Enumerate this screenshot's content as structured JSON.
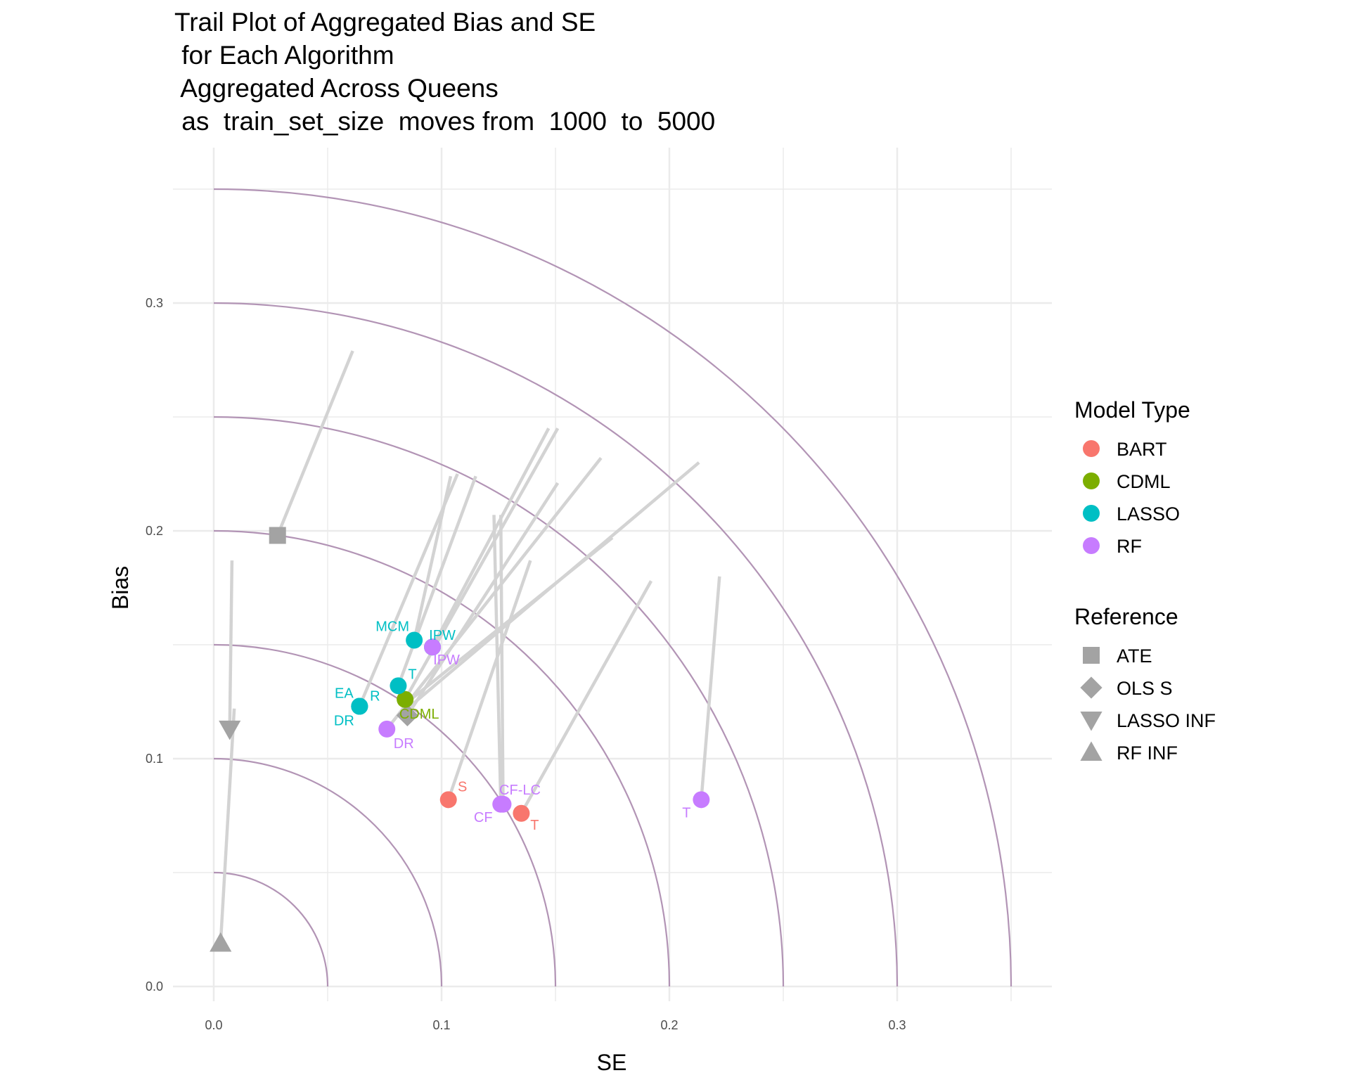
{
  "chart_data": {
    "type": "scatter",
    "title_lines": [
      "Trail Plot of Aggregated Bias and SE",
      " for Each Algorithm",
      " Aggregated Across Queens",
      " as  train_set_size  moves from  1000  to  5000"
    ],
    "xlabel": "SE",
    "ylabel": "Bias",
    "xlim": [
      -0.018,
      0.367
    ],
    "ylim": [
      -0.017,
      0.366
    ],
    "x_ticks": [
      {
        "value": 0.0,
        "label": "0.0"
      },
      {
        "value": 0.1,
        "label": "0.1"
      },
      {
        "value": 0.2,
        "label": "0.2"
      },
      {
        "value": 0.3,
        "label": "0.3"
      }
    ],
    "y_ticks": [
      {
        "value": 0.0,
        "label": "0.0"
      },
      {
        "value": 0.1,
        "label": "0.1"
      },
      {
        "value": 0.2,
        "label": "0.2"
      },
      {
        "value": 0.3,
        "label": "0.3"
      }
    ],
    "minor_grid": [
      0.05,
      0.15,
      0.25,
      0.35
    ],
    "grid": true,
    "reference_arcs": [
      0.05,
      0.1,
      0.15,
      0.2,
      0.25,
      0.3,
      0.35
    ],
    "arc_color": "#b294b5",
    "grid_color": "#ebebeb",
    "trail_color": "#d3d3d3",
    "reference_color": "#a3a3a3",
    "model_types": [
      {
        "name": "BART",
        "color": "#f8766d"
      },
      {
        "name": "CDML",
        "color": "#7cae00"
      },
      {
        "name": "LASSO",
        "color": "#00bfc4"
      },
      {
        "name": "RF",
        "color": "#c77cff"
      }
    ],
    "references": [
      {
        "name": "ATE",
        "shape": "square"
      },
      {
        "name": "OLS S",
        "shape": "diamond"
      },
      {
        "name": "LASSO INF",
        "shape": "triangle-down"
      },
      {
        "name": "RF INF",
        "shape": "triangle-up"
      }
    ],
    "legend_titles": {
      "model_type": "Model Type",
      "reference": "Reference"
    },
    "legend_position": "right",
    "trails": [
      {
        "from": [
          0.061,
          0.279
        ],
        "to": [
          0.028,
          0.198
        ]
      },
      {
        "from": [
          0.008,
          0.187
        ],
        "to": [
          0.007,
          0.113
        ]
      },
      {
        "from": [
          0.009,
          0.122
        ],
        "to": [
          0.003,
          0.019
        ]
      },
      {
        "from": [
          0.107,
          0.225
        ],
        "to": [
          0.064,
          0.123
        ]
      },
      {
        "from": [
          0.104,
          0.224
        ],
        "to": [
          0.088,
          0.152
        ]
      },
      {
        "from": [
          0.115,
          0.224
        ],
        "to": [
          0.081,
          0.132
        ]
      },
      {
        "from": [
          0.147,
          0.245
        ],
        "to": [
          0.096,
          0.149
        ]
      },
      {
        "from": [
          0.151,
          0.245
        ],
        "to": [
          0.084,
          0.126
        ]
      },
      {
        "from": [
          0.151,
          0.221
        ],
        "to": [
          0.085,
          0.119
        ]
      },
      {
        "from": [
          0.17,
          0.232
        ],
        "to": [
          0.076,
          0.113
        ]
      },
      {
        "from": [
          0.213,
          0.23
        ],
        "to": [
          0.085,
          0.122
        ]
      },
      {
        "from": [
          0.175,
          0.197
        ],
        "to": [
          0.084,
          0.124
        ]
      },
      {
        "from": [
          0.123,
          0.207
        ],
        "to": [
          0.126,
          0.08
        ]
      },
      {
        "from": [
          0.126,
          0.207
        ],
        "to": [
          0.127,
          0.08
        ]
      },
      {
        "from": [
          0.139,
          0.187
        ],
        "to": [
          0.103,
          0.082
        ]
      },
      {
        "from": [
          0.192,
          0.178
        ],
        "to": [
          0.135,
          0.076
        ]
      },
      {
        "from": [
          0.222,
          0.18
        ],
        "to": [
          0.214,
          0.082
        ]
      }
    ],
    "points": [
      {
        "x": 0.103,
        "y": 0.082,
        "model": "BART",
        "label": "S"
      },
      {
        "x": 0.135,
        "y": 0.076,
        "model": "BART",
        "label": "T"
      },
      {
        "x": 0.084,
        "y": 0.126,
        "model": "CDML",
        "label": "CDML"
      },
      {
        "x": 0.088,
        "y": 0.152,
        "model": "LASSO",
        "label": "MCM"
      },
      {
        "x": 0.081,
        "y": 0.132,
        "model": "LASSO",
        "label": "T"
      },
      {
        "x": 0.064,
        "y": 0.123,
        "model": "LASSO",
        "label": "EA"
      },
      {
        "x": 0.064,
        "y": 0.123,
        "model": "LASSO",
        "label": "R"
      },
      {
        "x": 0.064,
        "y": 0.123,
        "model": "LASSO",
        "label": "DR"
      },
      {
        "x": 0.096,
        "y": 0.149,
        "model": "LASSO",
        "label": "IPW"
      },
      {
        "x": 0.096,
        "y": 0.149,
        "model": "RF",
        "label": "IPW"
      },
      {
        "x": 0.076,
        "y": 0.113,
        "model": "RF",
        "label": "DR"
      },
      {
        "x": 0.126,
        "y": 0.08,
        "model": "RF",
        "label": "CF"
      },
      {
        "x": 0.127,
        "y": 0.08,
        "model": "RF",
        "label": "CF-LC"
      },
      {
        "x": 0.214,
        "y": 0.082,
        "model": "RF",
        "label": "T"
      }
    ],
    "reference_points": [
      {
        "x": 0.028,
        "y": 0.198,
        "reference": "ATE"
      },
      {
        "x": 0.085,
        "y": 0.119,
        "reference": "OLS S"
      },
      {
        "x": 0.007,
        "y": 0.113,
        "reference": "LASSO INF"
      },
      {
        "x": 0.003,
        "y": 0.019,
        "reference": "RF INF"
      }
    ]
  }
}
